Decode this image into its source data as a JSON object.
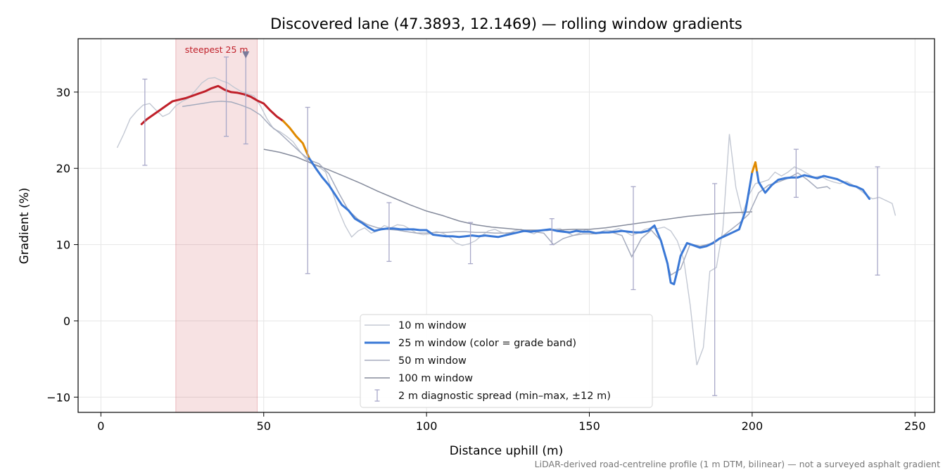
{
  "chart_data": {
    "type": "line",
    "title": "Discovered lane (47.3893, 12.1469) — rolling window gradients",
    "xlabel": "Distance uphill (m)",
    "ylabel": "Gradient (%)",
    "xlim": [
      -7,
      256
    ],
    "ylim": [
      -12,
      37
    ],
    "xticks": [
      0,
      50,
      100,
      150,
      200,
      250
    ],
    "yticks": [
      -10,
      0,
      10,
      20,
      30
    ],
    "xtick_labels": [
      "0",
      "50",
      "100",
      "150",
      "200",
      "250"
    ],
    "ytick_labels": [
      "−10",
      "0",
      "10",
      "20",
      "30"
    ],
    "grid": true,
    "legend_position": "lower-center",
    "footnote": "LiDAR-derived road-centreline profile (1 m DTM, bilinear) — not a surveyed asphalt gradient",
    "highlight": {
      "x_start": 23,
      "x_end": 48,
      "label": "steepest 25 m",
      "marker_x": 44.5,
      "color": "#c0202a"
    },
    "series": [
      {
        "name": "10 m window",
        "color": "#c3c8d3",
        "x": [
          5,
          7,
          9,
          11,
          13,
          15,
          17,
          19,
          21,
          23,
          25,
          27,
          29,
          31,
          33,
          35,
          37,
          39,
          41,
          43,
          45,
          47,
          49,
          51,
          53,
          55,
          57,
          59,
          61,
          63,
          65,
          67,
          69,
          71,
          73,
          75,
          77,
          79,
          81,
          83,
          85,
          87,
          89,
          91,
          93,
          95,
          97,
          99,
          101,
          103,
          105,
          107,
          109,
          111,
          113,
          115,
          117,
          119,
          121,
          123,
          125,
          127,
          129,
          131,
          133,
          135,
          137,
          139,
          141,
          143,
          145,
          147,
          149,
          151,
          153,
          155,
          157,
          159,
          161,
          163,
          165,
          167,
          169,
          171,
          173,
          175,
          177,
          179,
          181,
          183,
          185,
          187,
          189,
          191,
          193,
          195,
          197,
          199,
          201,
          203,
          205,
          207,
          209,
          211,
          213,
          215,
          217,
          219,
          221,
          223,
          225,
          227,
          229,
          231,
          233,
          235,
          237,
          239,
          241,
          243,
          244
        ],
        "y": [
          22.7,
          24.5,
          26.5,
          27.5,
          28.3,
          28.5,
          27.6,
          26.8,
          27.2,
          28.2,
          28.8,
          29.2,
          30.2,
          31.2,
          31.8,
          31.9,
          31.5,
          31.2,
          30.6,
          30.1,
          29.8,
          29.5,
          28.2,
          26.5,
          25.2,
          24.8,
          24.2,
          23.5,
          22.3,
          21.2,
          20.5,
          20.2,
          19.5,
          17.0,
          14.5,
          12.5,
          11.0,
          11.8,
          12.2,
          11.5,
          11.8,
          12.5,
          12.2,
          12.6,
          12.5,
          12.0,
          11.5,
          11.3,
          11.4,
          11.7,
          11.5,
          11.0,
          10.2,
          9.9,
          10.1,
          10.5,
          11.2,
          11.8,
          12.0,
          11.6,
          11.4,
          11.8,
          12.0,
          11.7,
          11.4,
          11.9,
          11.8,
          12.0,
          12.1,
          11.6,
          11.2,
          11.5,
          12.0,
          11.5,
          11.6,
          11.9,
          11.8,
          12.1,
          11.7,
          11.2,
          11.5,
          12.0,
          12.2,
          12.1,
          12.3,
          11.8,
          10.5,
          8.0,
          2.0,
          -5.8,
          -3.5,
          6.5,
          7.0,
          12.0,
          24.5,
          17.5,
          14.0,
          16.5,
          18.0,
          18.2,
          18.5,
          19.5,
          19.0,
          19.5,
          20.2,
          19.8,
          19.3,
          18.8,
          19.0,
          18.5,
          18.2,
          18.0,
          18.3,
          17.8,
          17.2,
          16.5,
          16.0,
          16.2,
          15.8,
          15.4,
          13.8
        ]
      },
      {
        "name": "25 m window (color = grade band)",
        "color": "#3a78d6",
        "band_colors": {
          "steep": "#c0202a",
          "moderate": "#e08a00",
          "normal": "#3a78d6"
        },
        "x": [
          12.5,
          14,
          16,
          18,
          20,
          22,
          24,
          26,
          28,
          30,
          32,
          34,
          36,
          38,
          40,
          42,
          44,
          46,
          48,
          50,
          52,
          54,
          56,
          58,
          60,
          62,
          64,
          66,
          68,
          70,
          72,
          74,
          76,
          78,
          80,
          82,
          84,
          86,
          88,
          90,
          92,
          94,
          96,
          98,
          100,
          102,
          104,
          106,
          108,
          110,
          112,
          114,
          116,
          118,
          120,
          122,
          124,
          126,
          128,
          130,
          132,
          134,
          136,
          138,
          140,
          142,
          144,
          146,
          148,
          150,
          152,
          154,
          156,
          158,
          160,
          162,
          164,
          166,
          168,
          170,
          172,
          174,
          175,
          176,
          177,
          178,
          180,
          182,
          184,
          186,
          188,
          190,
          192,
          194,
          196,
          198,
          200,
          201,
          202,
          204,
          206,
          208,
          210,
          212,
          214,
          216,
          218,
          220,
          222,
          224,
          226,
          228,
          230,
          232,
          234,
          236
        ],
        "y": [
          25.8,
          26.4,
          27.0,
          27.6,
          28.2,
          28.8,
          29.0,
          29.2,
          29.5,
          29.8,
          30.1,
          30.5,
          30.8,
          30.3,
          30.0,
          29.9,
          29.7,
          29.4,
          28.9,
          28.5,
          27.6,
          26.8,
          26.2,
          25.3,
          24.2,
          23.3,
          21.3,
          20.0,
          18.8,
          17.8,
          16.5,
          15.2,
          14.5,
          13.4,
          12.9,
          12.3,
          11.8,
          12.0,
          12.1,
          12.1,
          12.0,
          12.0,
          12.0,
          11.9,
          11.9,
          11.3,
          11.2,
          11.1,
          11.1,
          11.0,
          11.1,
          11.2,
          11.1,
          11.2,
          11.1,
          11.0,
          11.2,
          11.4,
          11.6,
          11.8,
          11.7,
          11.8,
          11.9,
          12.0,
          11.8,
          11.7,
          11.6,
          11.8,
          11.7,
          11.7,
          11.5,
          11.6,
          11.6,
          11.7,
          11.8,
          11.7,
          11.6,
          11.6,
          11.8,
          12.5,
          10.5,
          7.5,
          5.0,
          4.8,
          6.5,
          8.5,
          10.2,
          9.9,
          9.6,
          9.8,
          10.2,
          10.8,
          11.2,
          11.6,
          12.0,
          14.5,
          19.5,
          20.8,
          18.2,
          16.8,
          17.8,
          18.5,
          18.7,
          18.8,
          18.8,
          19.1,
          18.9,
          18.7,
          19.0,
          18.8,
          18.6,
          18.2,
          17.8,
          17.6,
          17.2,
          16.0
        ],
        "band_segments": [
          {
            "band": "steep",
            "from": 12.5,
            "to": 56
          },
          {
            "band": "moderate",
            "from": 56,
            "to": 64
          },
          {
            "band": "normal",
            "from": 64,
            "to": 200
          },
          {
            "band": "moderate",
            "from": 200,
            "to": 201.5
          },
          {
            "band": "normal",
            "from": 201.5,
            "to": 236
          }
        ]
      },
      {
        "name": "50 m window",
        "color": "#a5abbd",
        "x": [
          25,
          28,
          31,
          34,
          37,
          40,
          43,
          46,
          49,
          52,
          55,
          58,
          61,
          64,
          67,
          70,
          73,
          76,
          79,
          82,
          85,
          88,
          91,
          94,
          97,
          100,
          103,
          106,
          109,
          112,
          115,
          118,
          121,
          124,
          127,
          130,
          133,
          136,
          139,
          142,
          145,
          148,
          151,
          154,
          157,
          160,
          163,
          166,
          169,
          172,
          175,
          178,
          181,
          184,
          187,
          190,
          193,
          196,
          199,
          202,
          205,
          208,
          211,
          214,
          217,
          220,
          223,
          224
        ],
        "y": [
          28.1,
          28.3,
          28.5,
          28.7,
          28.8,
          28.7,
          28.3,
          27.8,
          27.0,
          25.6,
          24.6,
          23.4,
          22.2,
          21.1,
          20.6,
          19.3,
          16.8,
          14.5,
          13.3,
          12.6,
          12.2,
          12.0,
          11.9,
          11.7,
          11.5,
          11.5,
          11.6,
          11.6,
          11.7,
          11.7,
          11.6,
          11.6,
          11.5,
          11.5,
          11.6,
          11.7,
          11.7,
          11.5,
          10.0,
          10.8,
          11.2,
          11.4,
          11.4,
          11.5,
          11.6,
          11.2,
          8.4,
          10.8,
          11.9,
          10.5,
          6.0,
          6.8,
          10.1,
          9.8,
          10.1,
          10.8,
          11.8,
          12.8,
          14.0,
          16.8,
          17.8,
          18.2,
          18.7,
          19.4,
          18.5,
          17.4,
          17.6,
          17.3
        ]
      },
      {
        "name": "100 m window",
        "color": "#858b9c",
        "x": [
          50,
          55,
          60,
          65,
          70,
          75,
          80,
          85,
          90,
          95,
          100,
          105,
          110,
          115,
          120,
          125,
          130,
          135,
          140,
          145,
          150,
          155,
          160,
          165,
          170,
          175,
          180,
          185,
          190,
          195,
          200
        ],
        "y": [
          22.5,
          22.1,
          21.5,
          20.6,
          19.8,
          18.9,
          18.0,
          17.0,
          16.1,
          15.2,
          14.4,
          13.8,
          13.1,
          12.6,
          12.3,
          12.1,
          11.9,
          11.9,
          11.9,
          12.0,
          12.0,
          12.2,
          12.5,
          12.8,
          13.1,
          13.4,
          13.7,
          13.9,
          14.1,
          14.2,
          14.3
        ]
      }
    ],
    "error_bars": {
      "name": "2 m diagnostic spread (min–max, ±12 m)",
      "color": "#a8a8c8",
      "points": [
        {
          "x": 13.5,
          "low": 20.4,
          "high": 31.7
        },
        {
          "x": 38.5,
          "low": 24.2,
          "high": 34.6
        },
        {
          "x": 44.5,
          "low": 23.2,
          "high": 35.0
        },
        {
          "x": 63.5,
          "low": 6.2,
          "high": 28.0
        },
        {
          "x": 88.5,
          "low": 7.8,
          "high": 15.5
        },
        {
          "x": 113.5,
          "low": 7.5,
          "high": 12.9
        },
        {
          "x": 138.5,
          "low": 10.0,
          "high": 13.4
        },
        {
          "x": 163.5,
          "low": 4.1,
          "high": 17.6
        },
        {
          "x": 188.5,
          "low": -9.8,
          "high": 18.0
        },
        {
          "x": 213.5,
          "low": 16.2,
          "high": 22.5
        },
        {
          "x": 238.5,
          "low": 6.0,
          "high": 20.2
        }
      ]
    }
  }
}
